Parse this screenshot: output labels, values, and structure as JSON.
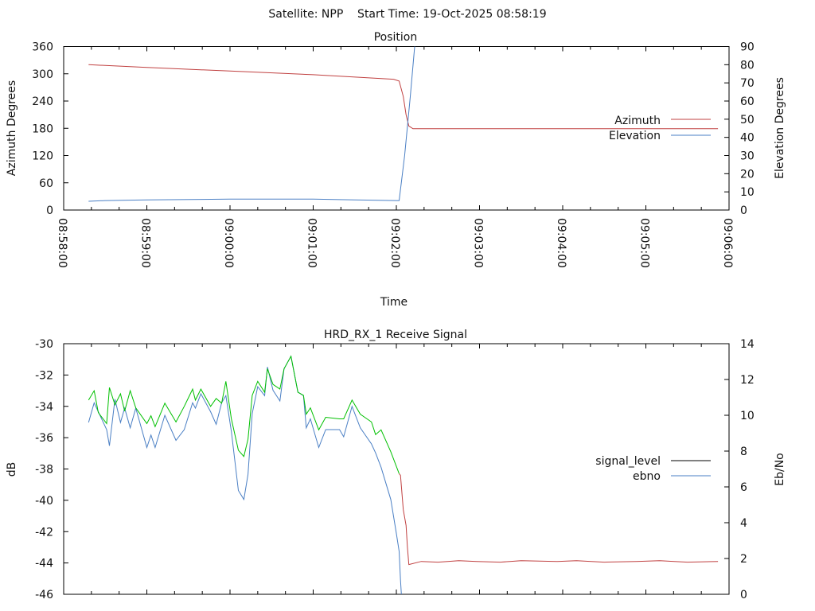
{
  "header": {
    "title": "Satellite: NPP    Start Time: 19-Oct-2025 08:58:19"
  },
  "colors": {
    "azimuth": "#c04040",
    "elevation": "#4a7fc4",
    "signal_ok": "#00c000",
    "signal_low": "#c04040",
    "legend_signal": "#000000",
    "ebno": "#4a7fc4"
  },
  "chart_data": [
    {
      "type": "line",
      "title": "Position",
      "xlabel": "Time",
      "ylabel": "Azimuth Degrees",
      "y2label": "Elevation Degrees",
      "x_unit": "seconds since 08:58:00",
      "xlim": [
        0,
        480
      ],
      "ylim": [
        0,
        360
      ],
      "y2lim": [
        0,
        90
      ],
      "x_ticks": [
        {
          "t": 0,
          "label": "08:58:00"
        },
        {
          "t": 60,
          "label": "08:59:00"
        },
        {
          "t": 120,
          "label": "09:00:00"
        },
        {
          "t": 180,
          "label": "09:01:00"
        },
        {
          "t": 240,
          "label": "09:02:00"
        },
        {
          "t": 300,
          "label": "09:03:00"
        },
        {
          "t": 360,
          "label": "09:04:00"
        },
        {
          "t": 420,
          "label": "09:05:00"
        },
        {
          "t": 480,
          "label": "09:06:00"
        }
      ],
      "y_ticks": [
        "0",
        "60",
        "120",
        "180",
        "240",
        "300",
        "360"
      ],
      "y2_ticks": [
        "0",
        "10",
        "20",
        "30",
        "40",
        "50",
        "60",
        "70",
        "80",
        "90"
      ],
      "legend": {
        "placement": "right",
        "entries": [
          "Azimuth",
          "Elevation"
        ]
      },
      "series": [
        {
          "name": "Azimuth",
          "axis": "y",
          "x": [
            18,
            60,
            120,
            180,
            238,
            242,
            245,
            247,
            249,
            252,
            472
          ],
          "y": [
            320,
            314,
            306,
            298,
            288,
            284,
            250,
            210,
            185,
            179,
            179
          ]
        },
        {
          "name": "Elevation",
          "axis": "y2",
          "x": [
            18,
            30,
            60,
            120,
            180,
            210,
            240,
            242,
            246,
            250,
            253,
            256
          ],
          "y": [
            4.8,
            5.2,
            5.6,
            6.0,
            6.0,
            5.6,
            5.2,
            5.2,
            30,
            62,
            88,
            110
          ]
        }
      ]
    },
    {
      "type": "line",
      "title": "HRD_RX_1 Receive Signal",
      "ylabel": "dB",
      "y2label": "Eb/No",
      "x_unit": "seconds since 08:58:00",
      "xlim": [
        0,
        480
      ],
      "ylim": [
        -46,
        -30
      ],
      "y2lim": [
        0,
        14
      ],
      "y_ticks": [
        "-46",
        "-44",
        "-42",
        "-40",
        "-38",
        "-36",
        "-34",
        "-32",
        "-30"
      ],
      "y2_ticks": [
        "0",
        "2",
        "4",
        "6",
        "8",
        "10",
        "12",
        "14"
      ],
      "legend": {
        "placement": "right",
        "entries": [
          "signal_level",
          "ebno"
        ]
      },
      "signal_color_switch_t": 242,
      "series": [
        {
          "name": "signal_level",
          "axis": "y",
          "x": [
            18,
            22,
            25,
            31,
            33,
            37,
            41,
            44,
            48,
            52,
            60,
            63,
            66,
            73,
            81,
            87,
            93,
            95,
            99,
            106,
            110,
            114,
            117,
            121,
            126,
            130,
            133,
            136,
            140,
            145,
            147,
            151,
            156,
            159,
            164,
            169,
            173,
            175,
            178,
            184,
            189,
            199,
            202,
            208,
            214,
            222,
            225,
            229,
            236,
            242,
            243,
            245,
            247,
            248,
            249,
            258,
            270,
            285,
            298,
            315,
            330,
            356,
            370,
            390,
            413,
            430,
            450,
            472
          ],
          "y": [
            -33.6,
            -33.0,
            -34.4,
            -35.1,
            -32.8,
            -33.9,
            -33.2,
            -34.3,
            -33.0,
            -34.1,
            -35.1,
            -34.6,
            -35.3,
            -33.8,
            -35.0,
            -34.0,
            -32.9,
            -33.6,
            -32.9,
            -34.0,
            -33.5,
            -33.8,
            -32.4,
            -34.8,
            -36.8,
            -37.2,
            -36.1,
            -33.3,
            -32.4,
            -33.1,
            -31.6,
            -32.6,
            -32.9,
            -31.6,
            -30.8,
            -33.1,
            -33.3,
            -34.5,
            -34.1,
            -35.5,
            -34.7,
            -34.8,
            -34.8,
            -33.6,
            -34.5,
            -35.0,
            -35.8,
            -35.5,
            -36.9,
            -38.3,
            -38.4,
            -40.6,
            -41.6,
            -43.0,
            -44.1,
            -43.9,
            -43.95,
            -43.85,
            -43.9,
            -43.95,
            -43.85,
            -43.9,
            -43.85,
            -43.95,
            -43.9,
            -43.85,
            -43.95,
            -43.9
          ]
        },
        {
          "name": "ebno",
          "axis": "y2",
          "x": [
            18,
            22,
            25,
            31,
            33,
            37,
            41,
            44,
            48,
            52,
            60,
            63,
            66,
            73,
            81,
            87,
            93,
            95,
            99,
            106,
            110,
            114,
            117,
            121,
            126,
            130,
            133,
            136,
            140,
            145,
            147,
            151,
            156,
            159,
            164,
            169,
            173,
            175,
            178,
            184,
            189,
            199,
            202,
            208,
            214,
            222,
            225,
            229,
            236,
            240,
            242,
            243,
            244
          ],
          "y": [
            9.6,
            10.7,
            10.2,
            9.2,
            8.3,
            10.9,
            9.6,
            10.4,
            9.3,
            10.4,
            8.2,
            8.9,
            8.2,
            10.0,
            8.6,
            9.2,
            10.7,
            10.4,
            11.2,
            10.2,
            9.5,
            10.7,
            11.1,
            9.1,
            5.8,
            5.3,
            6.7,
            10.1,
            11.6,
            11.1,
            12.7,
            11.4,
            10.8,
            12.6,
            13.3,
            11.3,
            11.1,
            9.3,
            9.8,
            8.2,
            9.2,
            9.2,
            8.8,
            10.5,
            9.3,
            8.4,
            7.9,
            7.1,
            5.3,
            3.4,
            2.4,
            0.8,
            -0.5
          ]
        }
      ]
    }
  ]
}
